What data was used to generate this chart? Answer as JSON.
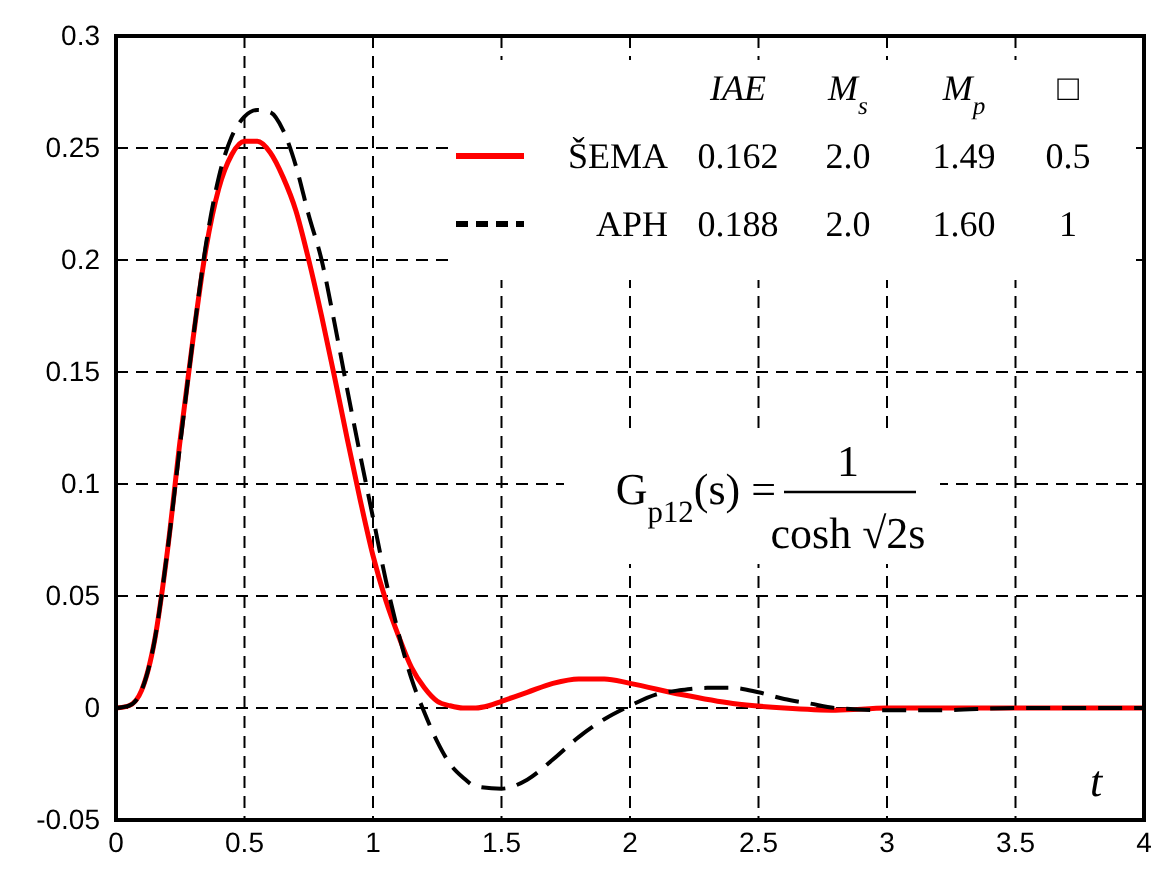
{
  "chart_data": {
    "type": "line",
    "xlabel": "t",
    "xlim": [
      0,
      4
    ],
    "xticks": [
      0,
      0.5,
      1,
      1.5,
      2,
      2.5,
      3,
      3.5,
      4
    ],
    "ylim": [
      -0.05,
      0.3
    ],
    "yticks": [
      -0.05,
      0,
      0.05,
      0.1,
      0.15,
      0.2,
      0.25,
      0.3
    ],
    "grid": true,
    "legend": "top",
    "annotations": [
      "IAE",
      "M$_{s}$",
      "M$_{p}$",
      "□",
      "0.162",
      "2.0",
      "1.49",
      "0.5",
      "0.188",
      "2.0",
      "1.60",
      "1",
      "G$_{p12}$(s) =",
      "1",
      "cosh √2s"
    ],
    "series": [
      {
        "name": "ŠEMA",
        "color": "#ff0000",
        "line_style": "solid",
        "x": [
          0,
          0.05,
          0.1,
          0.15,
          0.2,
          0.25,
          0.3,
          0.35,
          0.4,
          0.45,
          0.5,
          0.55,
          0.6,
          0.65,
          0.7,
          0.75,
          0.8,
          0.85,
          0.9,
          0.95,
          1.0,
          1.05,
          1.1,
          1.15,
          1.2,
          1.25,
          1.3,
          1.35,
          1.4,
          1.45,
          1.5,
          1.6,
          1.7,
          1.8,
          1.9,
          2.0,
          2.2,
          2.4,
          2.6,
          2.8,
          3.0,
          3.5,
          4
        ],
        "values": [
          0,
          0.001,
          0.008,
          0.03,
          0.07,
          0.12,
          0.165,
          0.205,
          0.232,
          0.247,
          0.253,
          0.253,
          0.248,
          0.237,
          0.222,
          0.2,
          0.175,
          0.148,
          0.12,
          0.093,
          0.068,
          0.048,
          0.032,
          0.018,
          0.009,
          0.003,
          0.001,
          0,
          0,
          0.001,
          0.003,
          0.007,
          0.011,
          0.013,
          0.013,
          0.011,
          0.006,
          0.002,
          0,
          -0.001,
          0,
          0,
          0
        ]
      },
      {
        "name": "APH",
        "color": "#000000",
        "line_style": "dashed",
        "x": [
          0,
          0.05,
          0.1,
          0.15,
          0.2,
          0.25,
          0.3,
          0.35,
          0.4,
          0.45,
          0.5,
          0.55,
          0.6,
          0.65,
          0.7,
          0.75,
          0.8,
          0.85,
          0.9,
          0.95,
          1.0,
          1.05,
          1.1,
          1.15,
          1.2,
          1.25,
          1.3,
          1.35,
          1.4,
          1.5,
          1.6,
          1.7,
          1.8,
          1.9,
          2.0,
          2.1,
          2.2,
          2.3,
          2.4,
          2.5,
          2.6,
          2.7,
          2.8,
          3.0,
          3.2,
          3.5,
          4
        ],
        "values": [
          0,
          0.001,
          0.008,
          0.03,
          0.07,
          0.118,
          0.165,
          0.207,
          0.237,
          0.255,
          0.264,
          0.267,
          0.266,
          0.258,
          0.242,
          0.22,
          0.2,
          0.172,
          0.142,
          0.113,
          0.085,
          0.057,
          0.033,
          0.013,
          -0.002,
          -0.015,
          -0.025,
          -0.031,
          -0.035,
          -0.036,
          -0.032,
          -0.023,
          -0.013,
          -0.005,
          0.001,
          0.006,
          0.008,
          0.009,
          0.009,
          0.007,
          0.004,
          0.002,
          0,
          -0.001,
          -0.001,
          0,
          0
        ]
      }
    ]
  }
}
